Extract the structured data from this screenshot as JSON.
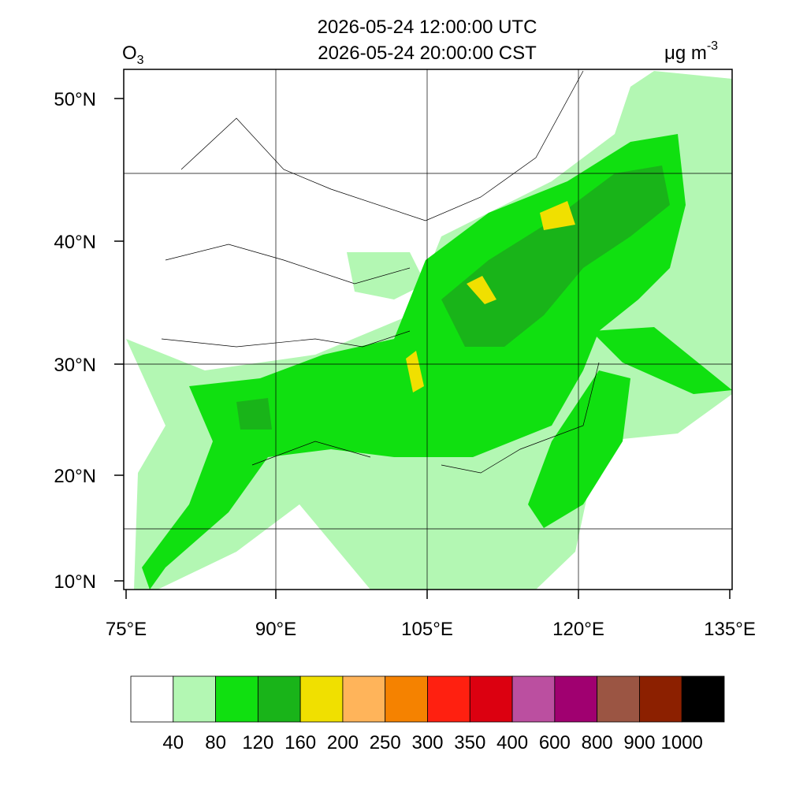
{
  "header": {
    "title_lines": [
      "2026-05-24 12:00:00 UTC",
      "2026-05-24 20:00:00 CST"
    ],
    "variable": {
      "base": "O",
      "sub": "3"
    },
    "units": {
      "base": "μg m",
      "sup": "-3"
    }
  },
  "map": {
    "lat_ticks": [
      {
        "value": 50,
        "label": "50°N"
      },
      {
        "value": 40,
        "label": "40°N"
      },
      {
        "value": 30,
        "label": "30°N"
      },
      {
        "value": 20,
        "label": "20°N"
      },
      {
        "value": 10,
        "label": "10°N"
      }
    ],
    "lon_ticks": [
      {
        "value": 75,
        "label": "75°E"
      },
      {
        "value": 90,
        "label": "90°E"
      },
      {
        "value": 105,
        "label": "105°E"
      },
      {
        "value": 120,
        "label": "120°E"
      },
      {
        "value": 135,
        "label": "135°E"
      }
    ]
  },
  "colorbar": {
    "colors": [
      "#ffffff",
      "#b3f7b3",
      "#10e010",
      "#19b419",
      "#f0e000",
      "#ffb45a",
      "#f58200",
      "#ff2010",
      "#dc0010",
      "#bb4fa0",
      "#a00070",
      "#9b5543",
      "#8c2000",
      "#000000"
    ],
    "labels": [
      "40",
      "80",
      "120",
      "160",
      "200",
      "250",
      "300",
      "350",
      "400",
      "600",
      "800",
      "900",
      "1000"
    ]
  }
}
